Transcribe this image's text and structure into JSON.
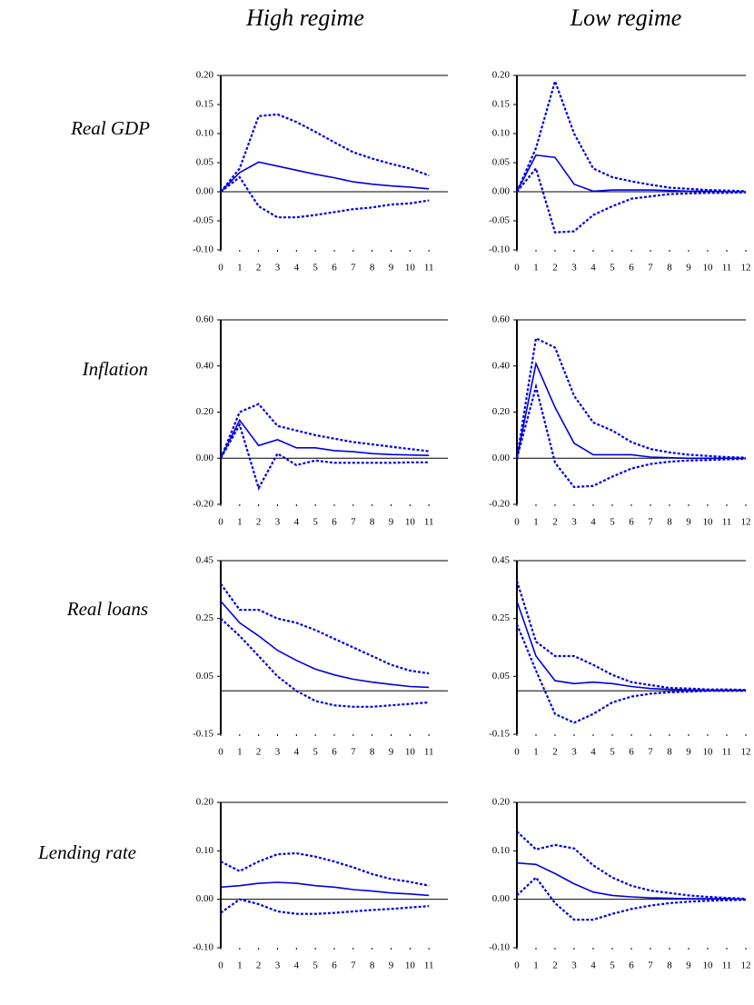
{
  "column_titles": [
    "High regime",
    "Low regime"
  ],
  "row_titles": [
    "Real GDP",
    "Inflation",
    "Real loans",
    "Lending rate"
  ],
  "chart_data": [
    {
      "type": "line",
      "x": [
        0,
        1,
        2,
        3,
        4,
        5,
        6,
        7,
        8,
        9,
        10,
        11
      ],
      "xlim": [
        0,
        12
      ],
      "xticks": [
        0,
        1,
        2,
        3,
        4,
        5,
        6,
        7,
        8,
        9,
        10,
        11
      ],
      "ylim": [
        -0.1,
        0.2
      ],
      "yticks": [
        {
          "value": -0.1,
          "label": "-0.10"
        },
        {
          "value": -0.05,
          "label": "-0.05"
        },
        {
          "value": 0,
          "label": "0.00"
        },
        {
          "value": 0.05,
          "label": "0.05"
        },
        {
          "value": 0.1,
          "label": "0.10"
        },
        {
          "value": 0.15,
          "label": "0.15"
        },
        {
          "value": 0.2,
          "label": "0.20"
        }
      ],
      "series": [
        {
          "color": "#0000e0",
          "dash": "dotted",
          "values": [
            0,
            0.04,
            0.13,
            0.133,
            0.12,
            0.103,
            0.085,
            0.068,
            0.057,
            0.048,
            0.04,
            0.028
          ]
        },
        {
          "color": "#0000e0",
          "dash": "solid",
          "values": [
            0,
            0.033,
            0.051,
            0.044,
            0.037,
            0.03,
            0.024,
            0.017,
            0.013,
            0.01,
            0.008,
            0.005
          ]
        },
        {
          "color": "#0000e0",
          "dash": "dotted",
          "values": [
            0,
            0.025,
            -0.025,
            -0.044,
            -0.044,
            -0.04,
            -0.035,
            -0.03,
            -0.027,
            -0.022,
            -0.02,
            -0.015
          ]
        }
      ]
    },
    {
      "type": "line",
      "x": [
        0,
        1,
        2,
        3,
        4,
        5,
        6,
        7,
        8,
        9,
        10,
        11,
        12
      ],
      "xlim": [
        0,
        12
      ],
      "xticks": [
        0,
        1,
        2,
        3,
        4,
        5,
        6,
        7,
        8,
        9,
        10,
        11,
        12
      ],
      "ylim": [
        -0.1,
        0.2
      ],
      "yticks": [
        {
          "value": -0.1,
          "label": "-0.10"
        },
        {
          "value": -0.05,
          "label": "-0.05"
        },
        {
          "value": 0,
          "label": "0.00"
        },
        {
          "value": 0.05,
          "label": "0.05"
        },
        {
          "value": 0.1,
          "label": "0.10"
        },
        {
          "value": 0.15,
          "label": "0.15"
        },
        {
          "value": 0.2,
          "label": "0.20"
        }
      ],
      "series": [
        {
          "color": "#0000e0",
          "dash": "dotted",
          "values": [
            0,
            0.075,
            0.19,
            0.1,
            0.04,
            0.025,
            0.018,
            0.012,
            0.007,
            0.005,
            0.003,
            0.002,
            0.001
          ]
        },
        {
          "color": "#0000e0",
          "dash": "solid",
          "values": [
            0,
            0.063,
            0.059,
            0.013,
            0.001,
            0.003,
            0.003,
            0.003,
            0.002,
            0.001,
            0.001,
            0,
            0
          ]
        },
        {
          "color": "#0000e0",
          "dash": "dotted",
          "values": [
            0,
            0.04,
            -0.07,
            -0.068,
            -0.04,
            -0.025,
            -0.012,
            -0.008,
            -0.004,
            -0.003,
            -0.002,
            -0.002,
            -0.001
          ]
        }
      ]
    },
    {
      "type": "line",
      "x": [
        0,
        1,
        2,
        3,
        4,
        5,
        6,
        7,
        8,
        9,
        10,
        11
      ],
      "xlim": [
        0,
        12
      ],
      "xticks": [
        0,
        1,
        2,
        3,
        4,
        5,
        6,
        7,
        8,
        9,
        10,
        11
      ],
      "ylim": [
        -0.2,
        0.6
      ],
      "yticks": [
        {
          "value": -0.2,
          "label": "-0.20"
        },
        {
          "value": 0,
          "label": "0.00"
        },
        {
          "value": 0.2,
          "label": "0.20"
        },
        {
          "value": 0.4,
          "label": "0.40"
        },
        {
          "value": 0.6,
          "label": "0.60"
        }
      ],
      "series": [
        {
          "color": "#0000e0",
          "dash": "dotted",
          "values": [
            0,
            0.2,
            0.235,
            0.14,
            0.12,
            0.1,
            0.085,
            0.07,
            0.06,
            0.05,
            0.04,
            0.03
          ]
        },
        {
          "color": "#0000e0",
          "dash": "solid",
          "values": [
            0,
            0.165,
            0.055,
            0.08,
            0.045,
            0.045,
            0.033,
            0.028,
            0.02,
            0.016,
            0.014,
            0.012
          ]
        },
        {
          "color": "#0000e0",
          "dash": "dotted",
          "values": [
            0,
            0.145,
            -0.13,
            0.02,
            -0.03,
            -0.01,
            -0.02,
            -0.02,
            -0.02,
            -0.02,
            -0.018,
            -0.018
          ]
        }
      ]
    },
    {
      "type": "line",
      "x": [
        0,
        1,
        2,
        3,
        4,
        5,
        6,
        7,
        8,
        9,
        10,
        11,
        12
      ],
      "xlim": [
        0,
        12
      ],
      "xticks": [
        0,
        1,
        2,
        3,
        4,
        5,
        6,
        7,
        8,
        9,
        10,
        11,
        12
      ],
      "ylim": [
        -0.2,
        0.6
      ],
      "yticks": [
        {
          "value": -0.2,
          "label": "-0.20"
        },
        {
          "value": 0,
          "label": "0.00"
        },
        {
          "value": 0.2,
          "label": "0.20"
        },
        {
          "value": 0.4,
          "label": "0.40"
        },
        {
          "value": 0.6,
          "label": "0.60"
        }
      ],
      "series": [
        {
          "color": "#0000e0",
          "dash": "dotted",
          "values": [
            0,
            0.52,
            0.48,
            0.27,
            0.155,
            0.12,
            0.07,
            0.04,
            0.025,
            0.015,
            0.01,
            0.005,
            0.002
          ]
        },
        {
          "color": "#0000e0",
          "dash": "solid",
          "values": [
            0,
            0.41,
            0.22,
            0.065,
            0.015,
            0.015,
            0.015,
            0.005,
            0.002,
            0,
            0,
            0,
            0
          ]
        },
        {
          "color": "#0000e0",
          "dash": "dotted",
          "values": [
            0,
            0.31,
            -0.02,
            -0.125,
            -0.12,
            -0.08,
            -0.045,
            -0.025,
            -0.015,
            -0.01,
            -0.008,
            -0.005,
            -0.003
          ]
        }
      ]
    },
    {
      "type": "line",
      "x": [
        0,
        1,
        2,
        3,
        4,
        5,
        6,
        7,
        8,
        9,
        10,
        11
      ],
      "xlim": [
        0,
        12
      ],
      "xticks": [
        0,
        1,
        2,
        3,
        4,
        5,
        6,
        7,
        8,
        9,
        10,
        11
      ],
      "ylim": [
        -0.15,
        0.45
      ],
      "yticks": [
        {
          "value": -0.15,
          "label": "-0.15"
        },
        {
          "value": 0.05,
          "label": "0.05"
        },
        {
          "value": 0.25,
          "label": "0.25"
        },
        {
          "value": 0.45,
          "label": "0.45"
        }
      ],
      "series": [
        {
          "color": "#0000e0",
          "dash": "dotted",
          "values": [
            0.37,
            0.28,
            0.28,
            0.25,
            0.235,
            0.21,
            0.18,
            0.15,
            0.12,
            0.09,
            0.07,
            0.06
          ]
        },
        {
          "color": "#0000e0",
          "dash": "solid",
          "values": [
            0.31,
            0.235,
            0.19,
            0.14,
            0.105,
            0.075,
            0.055,
            0.04,
            0.03,
            0.022,
            0.015,
            0.012
          ]
        },
        {
          "color": "#0000e0",
          "dash": "dotted",
          "values": [
            0.25,
            0.19,
            0.12,
            0.05,
            0,
            -0.035,
            -0.05,
            -0.055,
            -0.055,
            -0.05,
            -0.045,
            -0.04
          ]
        }
      ]
    },
    {
      "type": "line",
      "x": [
        0,
        1,
        2,
        3,
        4,
        5,
        6,
        7,
        8,
        9,
        10,
        11,
        12
      ],
      "xlim": [
        0,
        12
      ],
      "xticks": [
        0,
        1,
        2,
        3,
        4,
        5,
        6,
        7,
        8,
        9,
        10,
        11,
        12
      ],
      "ylim": [
        -0.15,
        0.45
      ],
      "yticks": [
        {
          "value": -0.15,
          "label": "-0.15"
        },
        {
          "value": 0.05,
          "label": "0.05"
        },
        {
          "value": 0.25,
          "label": "0.25"
        },
        {
          "value": 0.45,
          "label": "0.45"
        }
      ],
      "series": [
        {
          "color": "#0000e0",
          "dash": "dotted",
          "values": [
            0.38,
            0.17,
            0.12,
            0.12,
            0.09,
            0.055,
            0.03,
            0.02,
            0.01,
            0.008,
            0.005,
            0.005,
            0.003
          ]
        },
        {
          "color": "#0000e0",
          "dash": "solid",
          "values": [
            0.31,
            0.12,
            0.035,
            0.025,
            0.03,
            0.025,
            0.015,
            0.008,
            0.005,
            0.003,
            0.002,
            0.002,
            0.002
          ]
        },
        {
          "color": "#0000e0",
          "dash": "dotted",
          "values": [
            0.23,
            0.07,
            -0.08,
            -0.11,
            -0.08,
            -0.04,
            -0.02,
            -0.01,
            -0.005,
            -0.003,
            0,
            0,
            0
          ]
        }
      ]
    },
    {
      "type": "line",
      "x": [
        0,
        1,
        2,
        3,
        4,
        5,
        6,
        7,
        8,
        9,
        10,
        11
      ],
      "xlim": [
        0,
        12
      ],
      "xticks": [
        0,
        1,
        2,
        3,
        4,
        5,
        6,
        7,
        8,
        9,
        10,
        11
      ],
      "ylim": [
        -0.1,
        0.2
      ],
      "yticks": [
        {
          "value": -0.1,
          "label": "-0.10"
        },
        {
          "value": 0,
          "label": "0.00"
        },
        {
          "value": 0.1,
          "label": "0.10"
        },
        {
          "value": 0.2,
          "label": "0.20"
        }
      ],
      "series": [
        {
          "color": "#0000e0",
          "dash": "dotted",
          "values": [
            0.078,
            0.058,
            0.078,
            0.093,
            0.095,
            0.088,
            0.078,
            0.066,
            0.052,
            0.042,
            0.036,
            0.028
          ]
        },
        {
          "color": "#0000e0",
          "dash": "solid",
          "values": [
            0.025,
            0.028,
            0.033,
            0.035,
            0.033,
            0.028,
            0.025,
            0.02,
            0.017,
            0.013,
            0.011,
            0.008
          ]
        },
        {
          "color": "#0000e0",
          "dash": "dotted",
          "values": [
            -0.028,
            0,
            -0.01,
            -0.025,
            -0.03,
            -0.03,
            -0.028,
            -0.025,
            -0.022,
            -0.02,
            -0.017,
            -0.014
          ]
        }
      ]
    },
    {
      "type": "line",
      "x": [
        0,
        1,
        2,
        3,
        4,
        5,
        6,
        7,
        8,
        9,
        10,
        11,
        12
      ],
      "xlim": [
        0,
        12
      ],
      "xticks": [
        0,
        1,
        2,
        3,
        4,
        5,
        6,
        7,
        8,
        9,
        10,
        11,
        12
      ],
      "ylim": [
        -0.1,
        0.2
      ],
      "yticks": [
        {
          "value": -0.1,
          "label": "-0.10"
        },
        {
          "value": 0,
          "label": "0.00"
        },
        {
          "value": 0.1,
          "label": "0.10"
        },
        {
          "value": 0.2,
          "label": "0.20"
        }
      ],
      "series": [
        {
          "color": "#0000e0",
          "dash": "dotted",
          "values": [
            0.14,
            0.103,
            0.112,
            0.105,
            0.07,
            0.045,
            0.028,
            0.018,
            0.013,
            0.008,
            0.005,
            0.003,
            0.001
          ]
        },
        {
          "color": "#0000e0",
          "dash": "solid",
          "values": [
            0.075,
            0.072,
            0.053,
            0.032,
            0.015,
            0.008,
            0.005,
            0.003,
            0.002,
            0.001,
            0.001,
            0.001,
            0
          ]
        },
        {
          "color": "#0000e0",
          "dash": "dotted",
          "values": [
            0.008,
            0.045,
            -0.008,
            -0.042,
            -0.042,
            -0.03,
            -0.02,
            -0.013,
            -0.008,
            -0.005,
            -0.003,
            -0.002,
            -0.001
          ]
        }
      ]
    }
  ]
}
